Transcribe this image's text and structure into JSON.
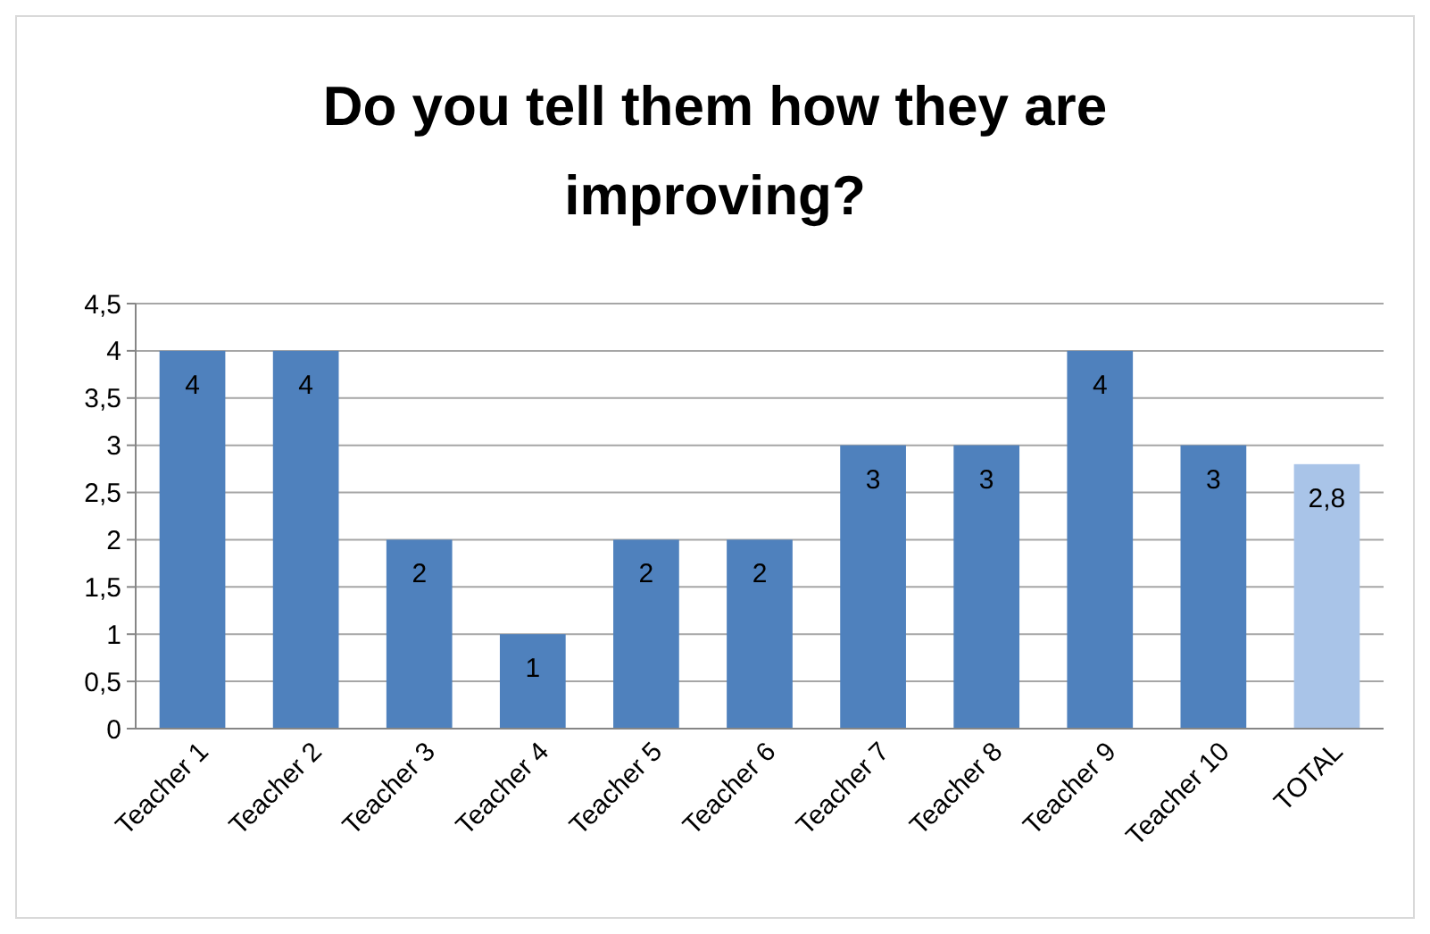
{
  "chart_data": {
    "type": "bar",
    "title": "Do you tell them how they are improving?",
    "categories": [
      "Teacher 1",
      "Teacher 2",
      "Teacher 3",
      "Teacher 4",
      "Teacher 5",
      "Teacher 6",
      "Teacher 7",
      "Teacher 8",
      "Teacher 9",
      "Teacher 10",
      "TOTAL"
    ],
    "values": [
      4,
      4,
      2,
      1,
      2,
      2,
      3,
      3,
      4,
      3,
      2.8
    ],
    "colors": [
      "#4f81bd",
      "#4f81bd",
      "#4f81bd",
      "#4f81bd",
      "#4f81bd",
      "#4f81bd",
      "#4f81bd",
      "#4f81bd",
      "#4f81bd",
      "#4f81bd",
      "#a9c4e8"
    ],
    "value_labels": [
      "4",
      "4",
      "2",
      "1",
      "2",
      "2",
      "3",
      "3",
      "4",
      "3",
      "2,8"
    ],
    "ylim": [
      0,
      4.5
    ],
    "yticks": [
      0,
      {
        "value": 0.5,
        "label": "0,5"
      },
      1,
      {
        "value": 1.5,
        "label": "1,5"
      },
      2,
      {
        "value": 2.5,
        "label": "2,5"
      },
      3,
      {
        "value": 3.5,
        "label": "3,5"
      },
      4,
      {
        "value": 4.5,
        "label": "4,5"
      }
    ],
    "grid": "y"
  }
}
